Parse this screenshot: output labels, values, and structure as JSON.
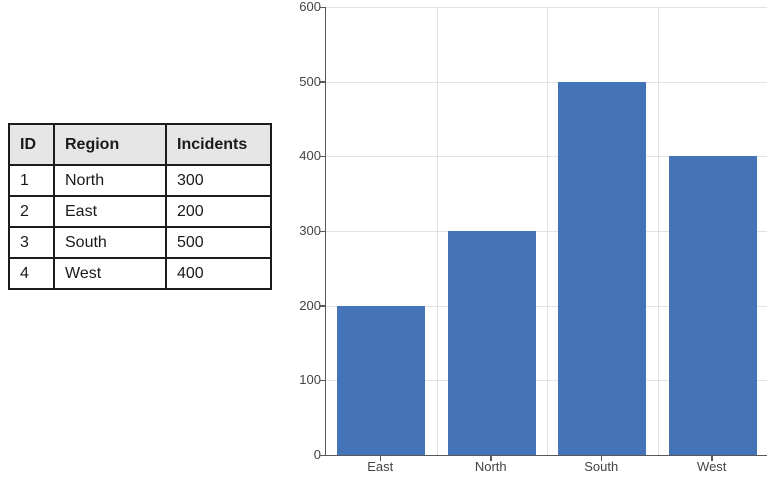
{
  "table": {
    "headers": [
      "ID",
      "Region",
      "Incidents"
    ],
    "rows": [
      [
        "1",
        "North",
        "300"
      ],
      [
        "2",
        "East",
        "200"
      ],
      [
        "3",
        "South",
        "500"
      ],
      [
        "4",
        "West",
        "400"
      ]
    ]
  },
  "chart_data": {
    "type": "bar",
    "title": "",
    "xlabel": "",
    "ylabel": "",
    "categories": [
      "East",
      "North",
      "South",
      "West"
    ],
    "values": [
      200,
      300,
      500,
      400
    ],
    "ylim": [
      0,
      600
    ],
    "yticks": [
      0,
      100,
      200,
      300,
      400,
      500,
      600
    ],
    "grid": true,
    "legend": false,
    "bar_color": "#4473b7"
  },
  "colors": {
    "axis": "#595959",
    "gridline": "#e2e2e2",
    "label": "#444444",
    "table_header_bg": "#e7e6e6",
    "table_border": "#1c1c1c",
    "bar": "#4473b7"
  }
}
